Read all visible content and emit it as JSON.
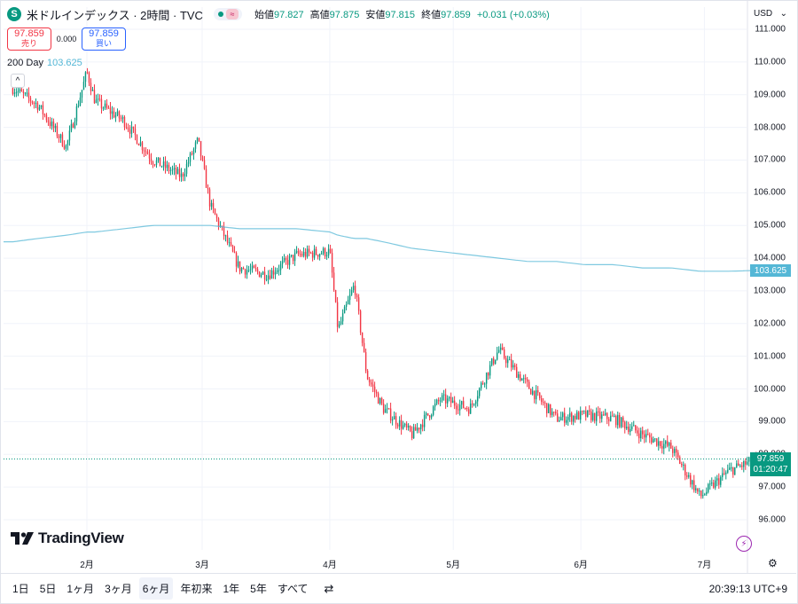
{
  "header": {
    "logo_letter": "S",
    "symbol_title": "米ドルインデックス · 2時間 · TVC",
    "badge_symbol": "≈",
    "ohlc": [
      {
        "label": "始値",
        "value": "97.827"
      },
      {
        "label": "高値",
        "value": "97.875"
      },
      {
        "label": "安値",
        "value": "97.815"
      },
      {
        "label": "終値",
        "value": "97.859"
      }
    ],
    "change": "+0.031 (+0.03%)"
  },
  "trade": {
    "sell_price": "97.859",
    "sell_label": "売り",
    "spread": "0.000",
    "buy_price": "97.859",
    "buy_label": "買い"
  },
  "indicator": {
    "label": "200 Day",
    "value": "103.625",
    "collapse_glyph": "^"
  },
  "currency": {
    "label": "USD",
    "arrow": "⌄"
  },
  "price_axis": [
    "111.000",
    "110.000",
    "109.000",
    "108.000",
    "107.000",
    "106.000",
    "105.000",
    "104.000",
    "103.000",
    "102.000",
    "101.000",
    "100.000",
    "99.000",
    "98.000",
    "97.000",
    "96.000"
  ],
  "time_axis": [
    "2月",
    "3月",
    "4月",
    "5月",
    "6月",
    "7月"
  ],
  "ma_tag": "103.625",
  "last_price_tag": {
    "price": "97.859",
    "countdown": "01:20:47"
  },
  "brand": "TradingView",
  "range_buttons": [
    {
      "label": "1日"
    },
    {
      "label": "5日"
    },
    {
      "label": "1ヶ月"
    },
    {
      "label": "3ヶ月"
    },
    {
      "label": "6ヶ月",
      "active": true
    },
    {
      "label": "年初来"
    },
    {
      "label": "1年"
    },
    {
      "label": "5年"
    },
    {
      "label": "すべて"
    }
  ],
  "compare_icon": "⇄",
  "clock": "20:39:13 UTC+9",
  "colors": {
    "up": "#089981",
    "down": "#f23645",
    "ma": "#54b7d6"
  },
  "chart_data": {
    "type": "line",
    "title": "米ドルインデックス · 2時間 · TVC",
    "ylim": [
      95.5,
      111.3
    ],
    "x": [
      "2025-01-14",
      "2025-01-20",
      "2025-01-27",
      "2025-02-01",
      "2025-02-03",
      "2025-02-10",
      "2025-02-17",
      "2025-02-24",
      "2025-02-28",
      "2025-03-03",
      "2025-03-10",
      "2025-03-17",
      "2025-03-24",
      "2025-04-01",
      "2025-04-03",
      "2025-04-07",
      "2025-04-10",
      "2025-04-14",
      "2025-04-21",
      "2025-04-28",
      "2025-05-05",
      "2025-05-12",
      "2025-05-19",
      "2025-05-26",
      "2025-06-02",
      "2025-06-09",
      "2025-06-16",
      "2025-06-23",
      "2025-06-30",
      "2025-07-07",
      "2025-07-14"
    ],
    "series": [
      {
        "values": [
          109.2,
          108.7,
          107.4,
          109.7,
          108.8,
          108.2,
          107.0,
          106.5,
          107.6,
          105.6,
          103.7,
          103.5,
          104.1,
          104.2,
          101.8,
          103.2,
          100.4,
          99.4,
          98.6,
          99.7,
          99.4,
          101.2,
          100.1,
          99.1,
          99.2,
          99.1,
          98.6,
          98.2,
          96.7,
          97.5,
          97.86
        ]
      },
      {
        "values": [
          104.5,
          104.6,
          104.7,
          104.8,
          104.8,
          104.9,
          105.0,
          105.0,
          105.0,
          105.0,
          104.9,
          104.9,
          104.9,
          104.8,
          104.7,
          104.6,
          104.6,
          104.5,
          104.3,
          104.2,
          104.1,
          104.0,
          103.9,
          103.9,
          103.8,
          103.8,
          103.7,
          103.7,
          103.6,
          103.6,
          103.625
        ]
      }
    ]
  }
}
